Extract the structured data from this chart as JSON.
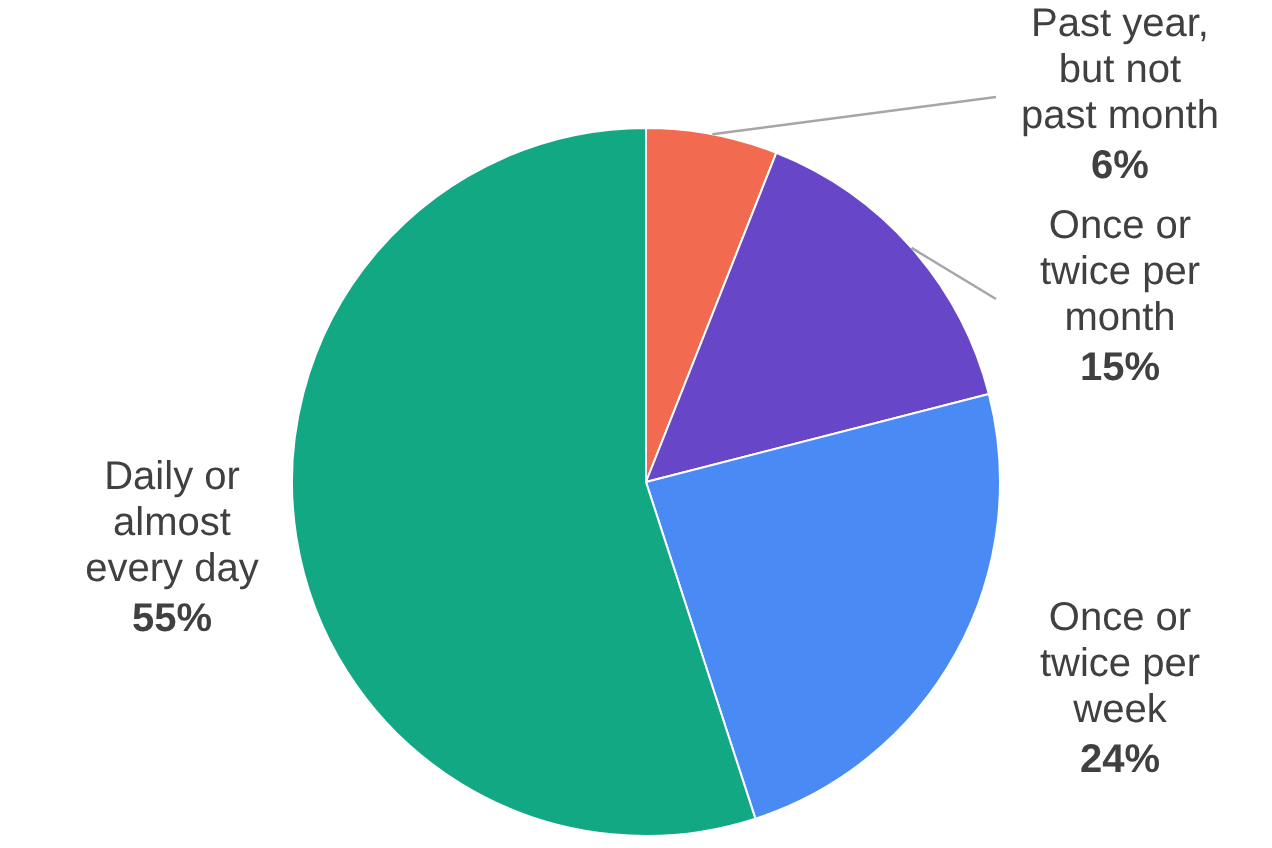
{
  "chart_data": {
    "type": "pie",
    "categories": [
      "Past year, but not past month",
      "Once or twice per month",
      "Once or twice per week",
      "Daily or almost every day"
    ],
    "values": [
      6,
      15,
      24,
      55
    ],
    "colors": [
      "#f26a4f",
      "#6747c7",
      "#4a8af4",
      "#12a884"
    ],
    "value_labels": [
      "6%",
      "15%",
      "24%",
      "55%"
    ]
  }
}
